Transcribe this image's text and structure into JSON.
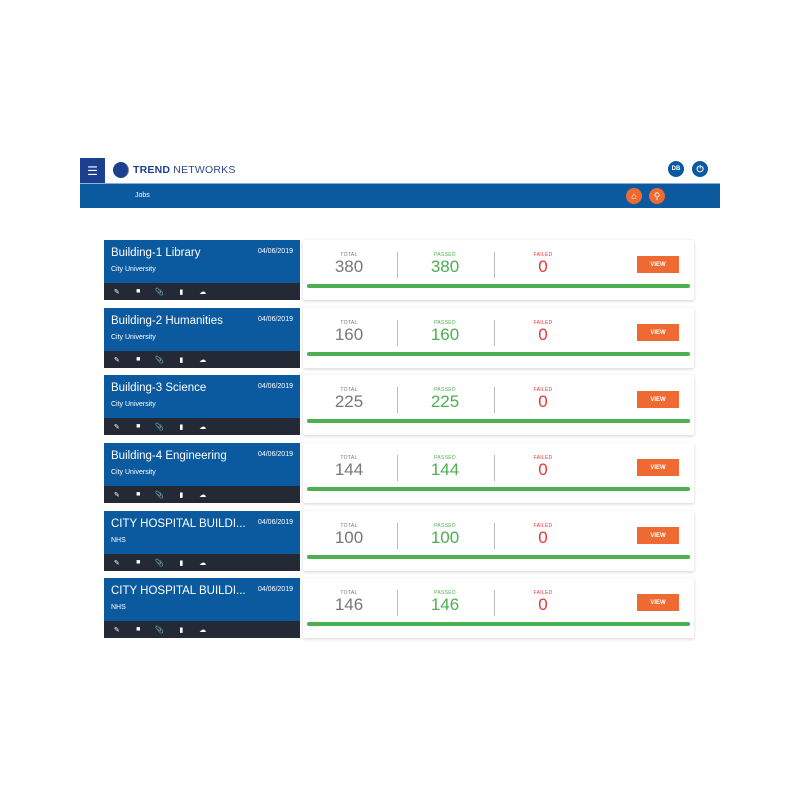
{
  "header": {
    "brand_bold": "TREND",
    "brand_rest": " NETWORKS",
    "user_initials": "DB"
  },
  "nav": {
    "jobs_label": "Jobs"
  },
  "labels": {
    "total": "TOTAL",
    "passed": "PASSED",
    "failed": "FAILED",
    "view": "VIEW"
  },
  "colors": {
    "primary": "#0b5aa0",
    "accent": "#ef6a32",
    "passed": "#4caf50",
    "failed": "#e53935",
    "footer": "#232a36"
  },
  "jobs": [
    {
      "name": "Building-1 Library",
      "org": "City University",
      "date": "04/06/2019",
      "total": "380",
      "passed": "380",
      "failed": "0",
      "progress": 100
    },
    {
      "name": "Building-2 Humanities",
      "org": "City University",
      "date": "04/06/2019",
      "total": "160",
      "passed": "160",
      "failed": "0",
      "progress": 100
    },
    {
      "name": "Building-3 Science",
      "org": "City University",
      "date": "04/06/2019",
      "total": "225",
      "passed": "225",
      "failed": "0",
      "progress": 100
    },
    {
      "name": "Building-4 Engineering",
      "org": "City University",
      "date": "04/06/2019",
      "total": "144",
      "passed": "144",
      "failed": "0",
      "progress": 100
    },
    {
      "name": "CITY HOSPITAL BUILDI...",
      "org": "NHS",
      "date": "04/06/2019",
      "total": "100",
      "passed": "100",
      "failed": "0",
      "progress": 100
    },
    {
      "name": "CITY HOSPITAL BUILDI...",
      "org": "NHS",
      "date": "04/06/2019",
      "total": "146",
      "passed": "146",
      "failed": "0",
      "progress": 100
    }
  ]
}
